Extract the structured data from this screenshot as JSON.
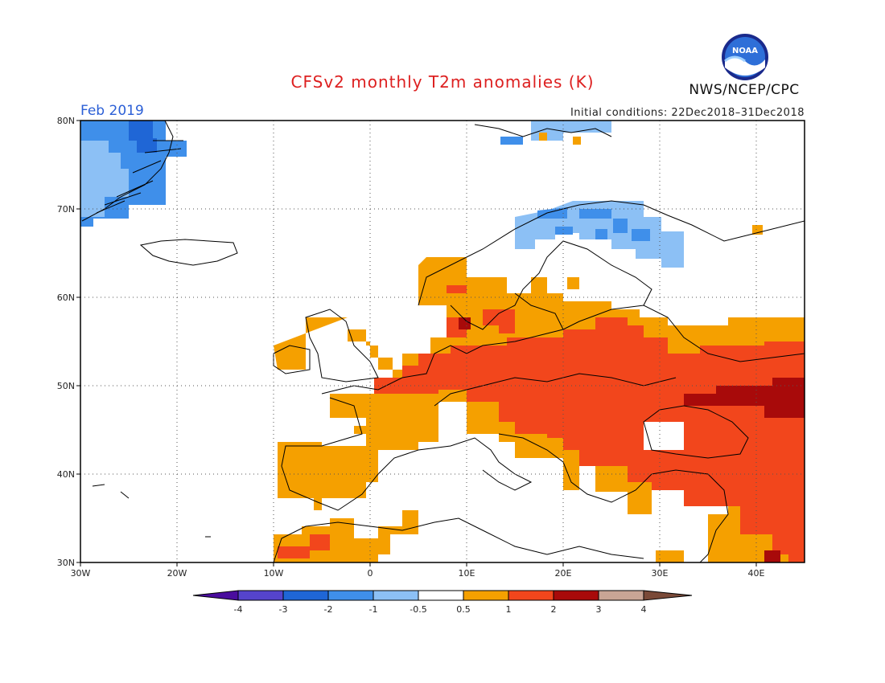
{
  "header": {
    "title": "CFSv2 monthly T2m anomalies (K)",
    "month": "Feb 2019",
    "initial_conditions": "Initial conditions: 22Dec2018–31Dec2018",
    "agency": "NWS/NCEP/CPC",
    "logo_text": "NOAA"
  },
  "map": {
    "lon_range": [
      -30,
      45
    ],
    "lat_range": [
      30,
      80
    ],
    "lon_ticks": [
      "30W",
      "20W",
      "10W",
      "0",
      "10E",
      "20E",
      "30E",
      "40E"
    ],
    "lat_ticks": [
      "30N",
      "40N",
      "50N",
      "60N",
      "70N",
      "80N"
    ]
  },
  "legend": {
    "labels": [
      "-4",
      "-3",
      "-2",
      "-1",
      "-0.5",
      "0.5",
      "1",
      "2",
      "3",
      "4"
    ],
    "colors": {
      "below_-4": "#4a0d9e",
      "-4_-3": "#5544cc",
      "-3_-2": "#1f66d6",
      "-2_-1": "#3f8fea",
      "-1_-0.5": "#8cc0f5",
      "neutral": "#ffffff",
      "0.5_1": "#f5a000",
      "1_2": "#f2461c",
      "2_3": "#a80a0a",
      "3_4": "#c9a595",
      "above_4": "#7a4a38"
    }
  }
}
